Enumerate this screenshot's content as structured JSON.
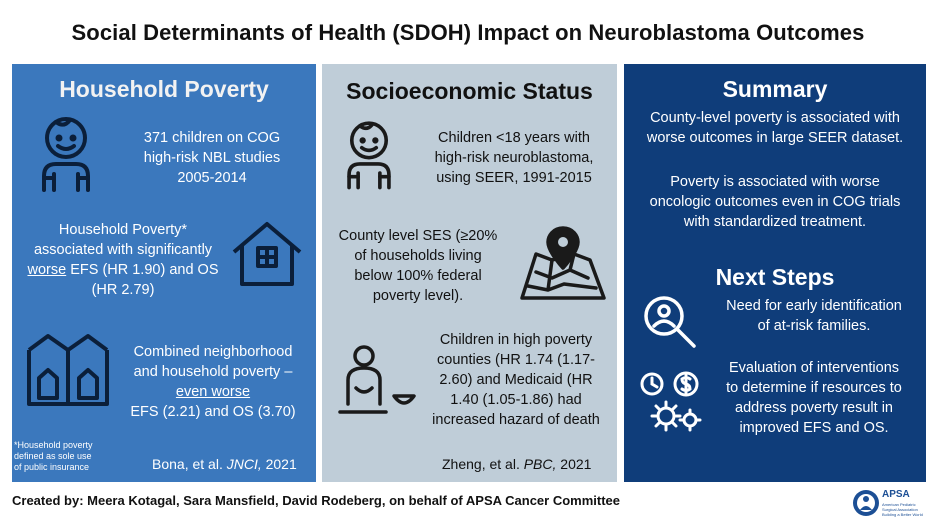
{
  "title": "Social Determinants of Health (SDOH) Impact on Neuroblastoma Outcomes",
  "panel1": {
    "heading": "Household Poverty",
    "block1": [
      "371 children on COG",
      "high-risk NBL studies",
      "2005-2014"
    ],
    "block2": {
      "line1": "Household Poverty*",
      "line2": "associated with significantly",
      "worse": "worse",
      "line3_rest": " EFS (HR 1.90) and OS",
      "line4": "(HR 2.79)"
    },
    "block3": {
      "line1": "Combined neighborhood",
      "line2": "and household poverty –",
      "line3": "even worse",
      "line4": "EFS (2.21) and OS (3.70)"
    },
    "footnote": [
      "*Household poverty",
      "defined as sole use",
      "of public insurance"
    ],
    "citation": {
      "pre": "Bona, et al. ",
      "journal": "JNCI,",
      "year": " 2021"
    }
  },
  "panel2": {
    "heading": "Socioeconomic Status",
    "block1": [
      "Children <18 years with",
      "high-risk neuroblastoma,",
      "using SEER, 1991-2015"
    ],
    "block2": [
      "County level SES (≥20%",
      "of households living",
      "below 100% federal",
      "poverty level)."
    ],
    "block3": [
      "Children in high poverty",
      "counties (HR 1.74 (1.17-",
      "2.60) and Medicaid (HR",
      "1.40 (1.05-1.86) had",
      "increased hazard of death"
    ],
    "citation": {
      "pre": "Zheng, et al. ",
      "journal": "PBC,",
      "year": " 2021"
    }
  },
  "panel3": {
    "heading": "Summary",
    "summary1": [
      "County-level poverty is associated with",
      "worse outcomes in large SEER dataset."
    ],
    "summary2": [
      "Poverty is associated with worse",
      "oncologic outcomes even in COG trials",
      "with standardized treatment."
    ],
    "next_heading": "Next Steps",
    "next1": [
      "Need for early identification",
      "of at-risk families."
    ],
    "next2": [
      "Evaluation of interventions",
      "to determine if resources to",
      "address poverty result in",
      "improved EFS and OS."
    ]
  },
  "footer": {
    "credits": "Created by: Meera Kotagal, Sara Mansfield, David Rodeberg, on behalf of APSA Cancer Committee",
    "logo_name": "APSA",
    "logo_sub": [
      "American Pediatric",
      "Surgical Association"
    ],
    "logo_tagline": "Building a Better World"
  },
  "colors": {
    "panel1": "#3b78bd",
    "panel2": "#bfcdd8",
    "panel3": "#0f3d7a"
  }
}
